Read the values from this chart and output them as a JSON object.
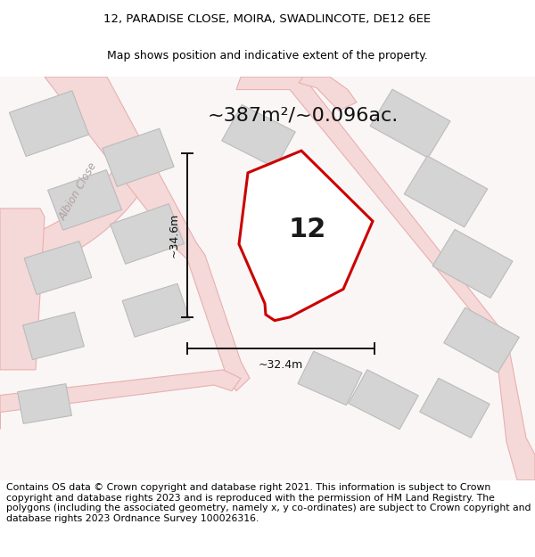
{
  "title_line1": "12, PARADISE CLOSE, MOIRA, SWADLINCOTE, DE12 6EE",
  "title_line2": "Map shows position and indicative extent of the property.",
  "area_text": "~387m²/~0.096ac.",
  "label_number": "12",
  "dim_vertical": "~34.6m",
  "dim_horizontal": "~32.4m",
  "road_label": "Albion Close",
  "footer_text": "Contains OS data © Crown copyright and database right 2021. This information is subject to Crown copyright and database rights 2023 and is reproduced with the permission of HM Land Registry. The polygons (including the associated geometry, namely x, y co-ordinates) are subject to Crown copyright and database rights 2023 Ordnance Survey 100026316.",
  "bg_color": "#ffffff",
  "map_bg": "#ffffff",
  "road_color": "#e8b0b0",
  "building_color": "#d4d4d4",
  "building_edge": "#bbbbbb",
  "plot_edge": "#cc0000",
  "road_fill": "#f5d8d8",
  "title_fontsize": 9.5,
  "subtitle_fontsize": 9.0,
  "footer_fontsize": 7.8,
  "area_fontsize": 16,
  "dim_fontsize": 9,
  "label_fontsize": 22
}
